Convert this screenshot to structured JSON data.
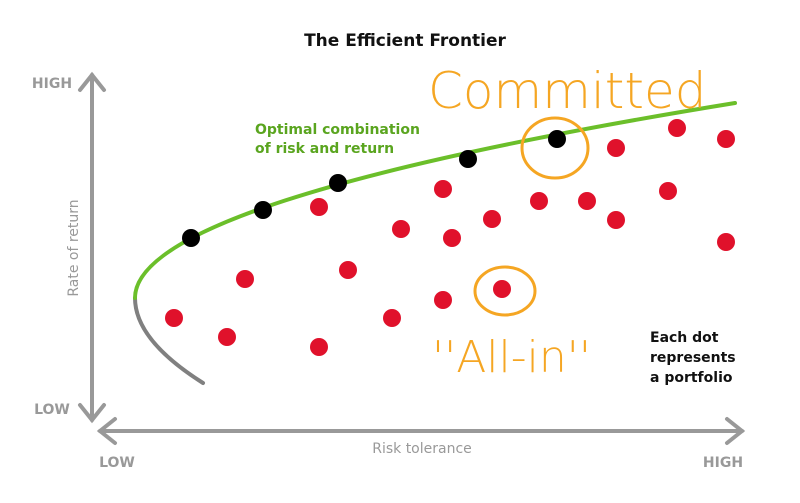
{
  "title": "The Efficient Frontier",
  "y_axis": {
    "label": "Rate of return",
    "high": "HIGH",
    "low": "LOW"
  },
  "x_axis": {
    "label": "Risk tolerance",
    "low": "LOW",
    "high": "HIGH"
  },
  "curve_label": [
    "Optimal combination",
    "of risk and return"
  ],
  "annotations": {
    "committed": "Committed",
    "all_in": "''All-in''"
  },
  "note": [
    "Each dot",
    "represents",
    "a portfolio"
  ]
}
